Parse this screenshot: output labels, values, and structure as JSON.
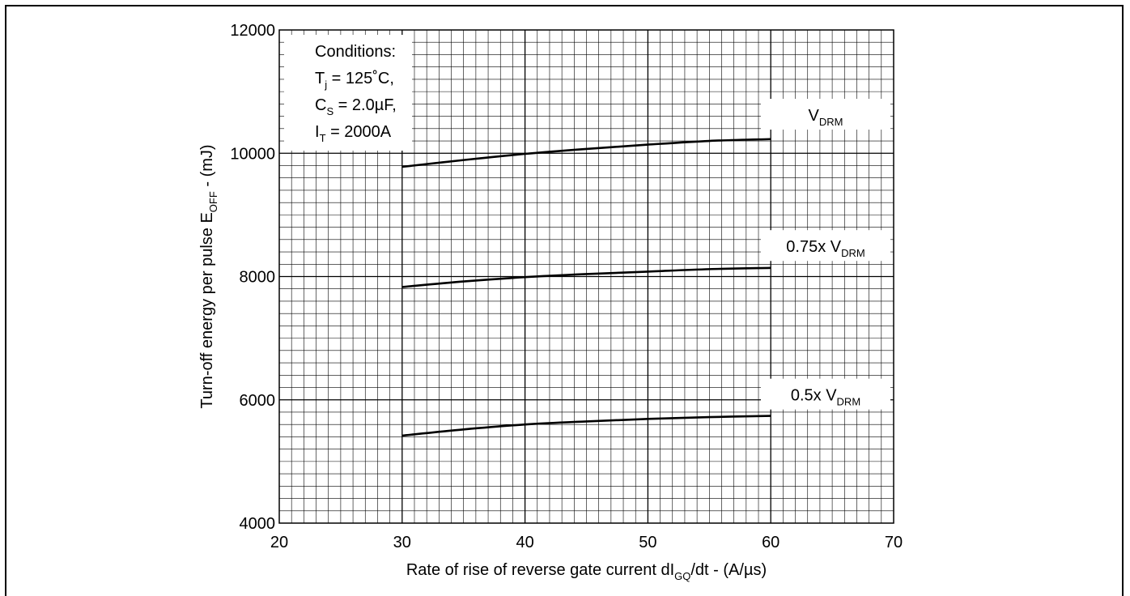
{
  "chart_data": {
    "type": "line",
    "xlabel": {
      "main": "Rate of rise of reverse gate current dI",
      "sub": "GQ",
      "tail": "/dt - (A/µs)"
    },
    "ylabel": {
      "main": "Turn-off energy per pulse E",
      "sub": "OFF",
      "tail": " - (mJ)"
    },
    "xlim": [
      20,
      70
    ],
    "ylim": [
      4000,
      12000
    ],
    "x_ticks": [
      "20",
      "30",
      "40",
      "50",
      "60",
      "70"
    ],
    "y_ticks": [
      "4000",
      "6000",
      "8000",
      "10000",
      "12000"
    ],
    "grid": true,
    "conditions": {
      "heading": "Conditions:",
      "lines": [
        {
          "main": "T",
          "sub": "j",
          "tail": " = 125˚C,"
        },
        {
          "main": "C",
          "sub": "S",
          "tail": " = 2.0µF,"
        },
        {
          "main": "I",
          "sub": "T",
          "tail": " = 2000A"
        }
      ]
    },
    "series": [
      {
        "name": {
          "main": "V",
          "sub": "DRM"
        },
        "x": [
          30,
          35,
          40,
          45,
          50,
          55,
          60
        ],
        "y": [
          9780,
          9890,
          9990,
          10070,
          10140,
          10200,
          10230
        ]
      },
      {
        "name": {
          "main": "0.75x V",
          "sub": "DRM"
        },
        "x": [
          30,
          35,
          40,
          45,
          50,
          55,
          60
        ],
        "y": [
          7830,
          7920,
          7990,
          8040,
          8080,
          8120,
          8140
        ]
      },
      {
        "name": {
          "main": "0.5x V",
          "sub": "DRM"
        },
        "x": [
          30,
          35,
          40,
          45,
          50,
          55,
          60
        ],
        "y": [
          5420,
          5520,
          5600,
          5650,
          5690,
          5720,
          5740
        ]
      }
    ]
  }
}
